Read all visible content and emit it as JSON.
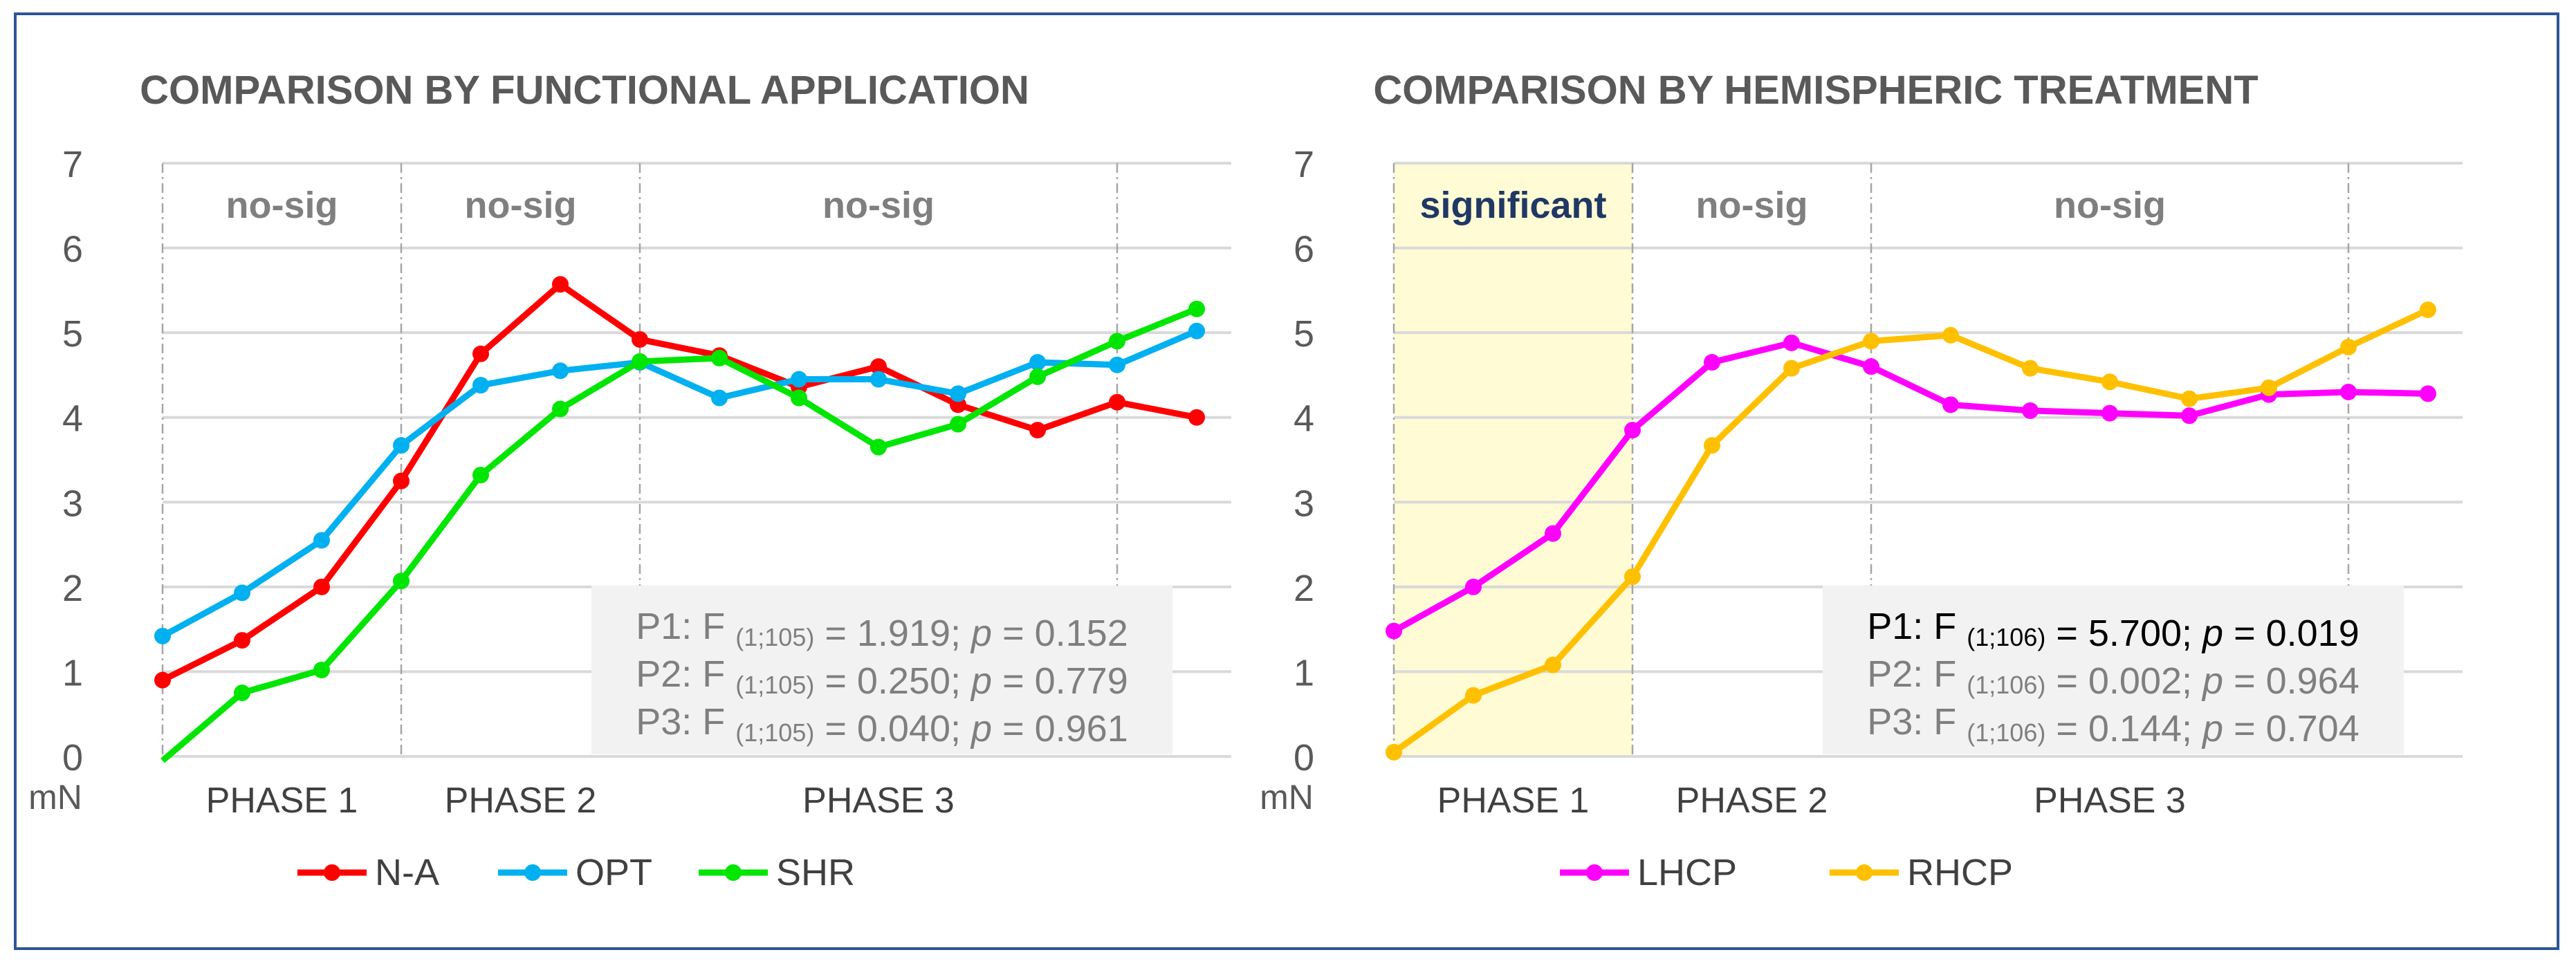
{
  "chart_data": [
    {
      "type": "line",
      "title": "COMPARISON BY FUNCTIONAL APPLICATION",
      "ylabel": "mN",
      "ylim": [
        0,
        7
      ],
      "yticks": [
        0,
        1,
        2,
        3,
        4,
        5,
        6,
        7
      ],
      "x": [
        1,
        2,
        3,
        4,
        5,
        6,
        7,
        8,
        9,
        10,
        11,
        12,
        13,
        14
      ],
      "phases": [
        {
          "label": "PHASE 1",
          "start": 1,
          "end": 4
        },
        {
          "label": "PHASE 2",
          "start": 4,
          "end": 7
        },
        {
          "label": "PHASE 3",
          "start": 7,
          "end": 13
        }
      ],
      "region_labels": [
        {
          "label": "no-sig",
          "start": 1,
          "end": 4,
          "significant": false
        },
        {
          "label": "no-sig",
          "start": 4,
          "end": 7,
          "significant": false
        },
        {
          "label": "no-sig",
          "start": 7,
          "end": 13,
          "significant": false
        }
      ],
      "divider_lines": [
        1,
        4,
        7,
        13
      ],
      "series": [
        {
          "name": "N-A",
          "color": "#ff0000",
          "values": [
            0.9,
            1.37,
            2.0,
            3.25,
            4.75,
            5.57,
            4.92,
            4.73,
            4.36,
            4.6,
            4.15,
            3.85,
            4.18,
            4.0
          ]
        },
        {
          "name": "OPT",
          "color": "#00b0f0",
          "values": [
            1.42,
            1.93,
            2.55,
            3.67,
            4.38,
            4.55,
            4.65,
            4.23,
            4.45,
            4.45,
            4.28,
            4.65,
            4.62,
            5.02
          ]
        },
        {
          "name": "SHR",
          "color": "#00e600",
          "values": [
            -0.05,
            0.75,
            1.02,
            2.07,
            3.32,
            4.1,
            4.66,
            4.7,
            4.23,
            3.65,
            3.92,
            4.48,
            4.9,
            5.28
          ]
        }
      ],
      "stats_box": [
        {
          "label": "P1: F",
          "sub": "(1;105)",
          "value": "= 1.919;",
          "p_label": "p",
          "p_value": "= 0.152",
          "highlight": false
        },
        {
          "label": "P2: F",
          "sub": "(1;105)",
          "value": "= 0.250;",
          "p_label": "p",
          "p_value": "= 0.779",
          "highlight": false
        },
        {
          "label": "P3: F",
          "sub": "(1;105)",
          "value": "= 0.040;",
          "p_label": "p",
          "p_value": "= 0.961",
          "highlight": false
        }
      ],
      "legend_position": "bottom-center"
    },
    {
      "type": "line",
      "title": "COMPARISON BY HEMISPHERIC TREATMENT",
      "ylabel": "mN",
      "ylim": [
        0,
        7
      ],
      "yticks": [
        0,
        1,
        2,
        3,
        4,
        5,
        6,
        7
      ],
      "x": [
        1,
        2,
        3,
        4,
        5,
        6,
        7,
        8,
        9,
        10,
        11,
        12,
        13,
        14
      ],
      "phases": [
        {
          "label": "PHASE 1",
          "start": 1,
          "end": 4
        },
        {
          "label": "PHASE 2",
          "start": 4,
          "end": 7
        },
        {
          "label": "PHASE 3",
          "start": 7,
          "end": 13
        }
      ],
      "region_labels": [
        {
          "label": "significant",
          "start": 1,
          "end": 4,
          "significant": true
        },
        {
          "label": "no-sig",
          "start": 4,
          "end": 7,
          "significant": false
        },
        {
          "label": "no-sig",
          "start": 7,
          "end": 13,
          "significant": false
        }
      ],
      "divider_lines": [
        1,
        4,
        7,
        13
      ],
      "series": [
        {
          "name": "LHCP",
          "color": "#ff00ff",
          "values": [
            1.48,
            2.0,
            2.63,
            3.85,
            4.65,
            4.88,
            4.6,
            4.15,
            4.08,
            4.05,
            4.02,
            4.27,
            4.3,
            4.28
          ]
        },
        {
          "name": "RHCP",
          "color": "#ffc000",
          "values": [
            0.05,
            0.72,
            1.08,
            2.12,
            3.67,
            4.58,
            4.9,
            4.97,
            4.58,
            4.42,
            4.22,
            4.35,
            4.83,
            5.27
          ]
        }
      ],
      "stats_box": [
        {
          "label": "P1: F",
          "sub": "(1;106)",
          "value": "= 5.700;",
          "p_label": "p",
          "p_value": "= 0.019",
          "highlight": true
        },
        {
          "label": "P2: F",
          "sub": "(1;106)",
          "value": "= 0.002;",
          "p_label": "p",
          "p_value": "= 0.964",
          "highlight": false
        },
        {
          "label": "P3: F",
          "sub": "(1;106)",
          "value": "= 0.144;",
          "p_label": "p",
          "p_value": "= 0.704",
          "highlight": false
        }
      ],
      "legend_position": "bottom-center"
    }
  ]
}
